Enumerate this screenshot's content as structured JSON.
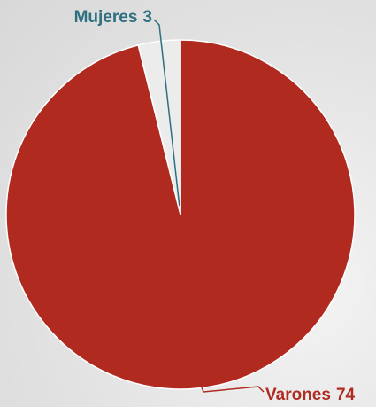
{
  "chart_data": {
    "type": "pie",
    "categories": [
      "Varones",
      "Mujeres"
    ],
    "values": [
      74,
      3
    ],
    "colors": [
      "#b02a20",
      "#ececec"
    ],
    "label_colors": [
      "#b02a20",
      "#2e6f80"
    ]
  }
}
